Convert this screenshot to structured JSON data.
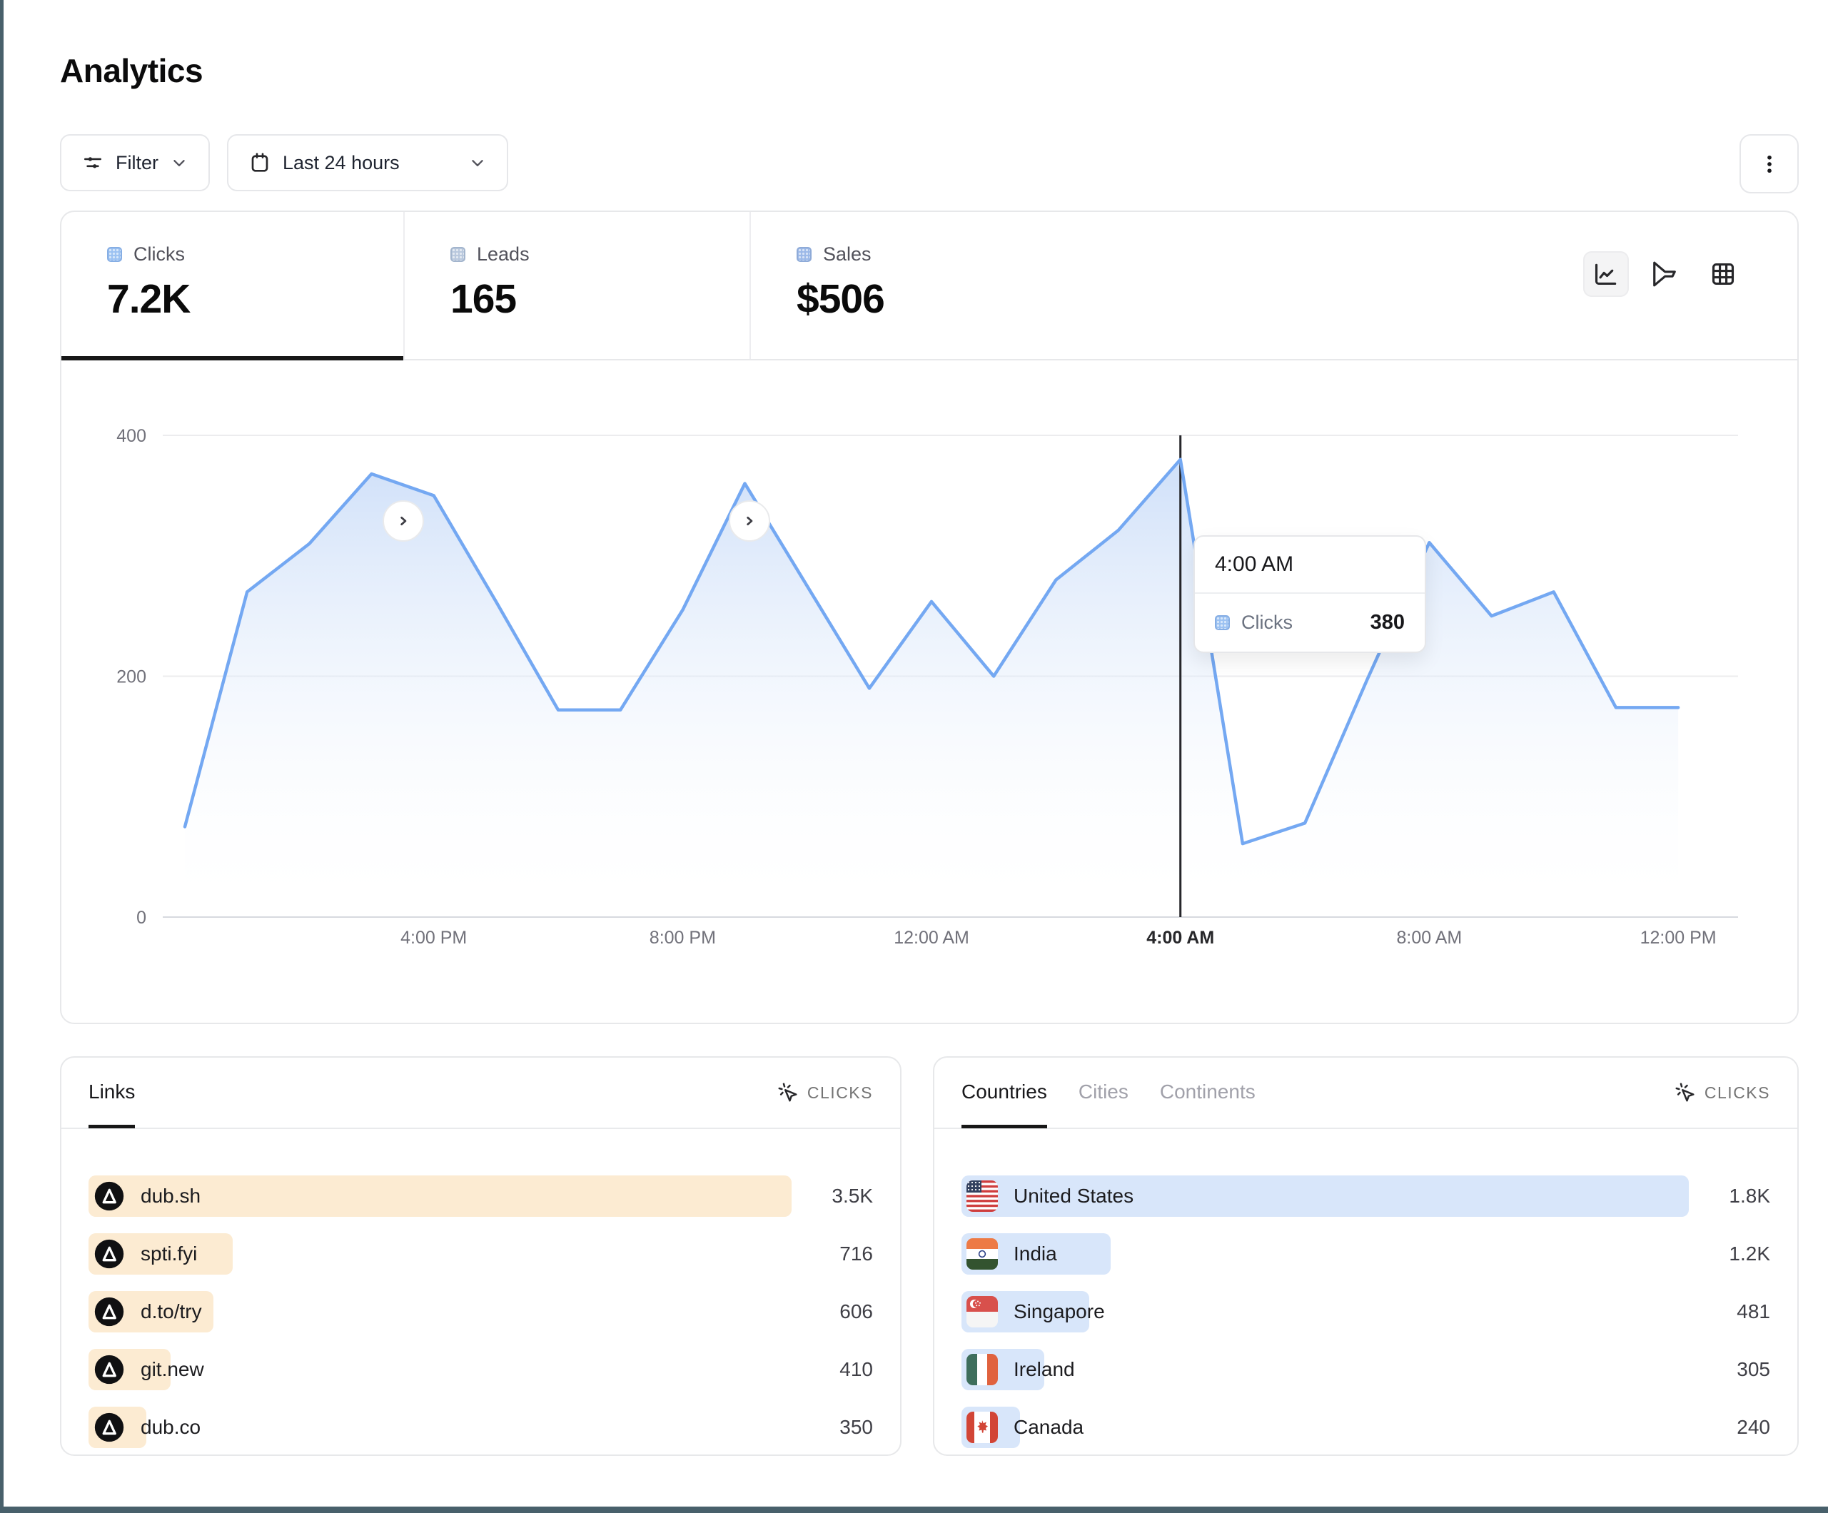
{
  "colors": {
    "window_edge": "#48606b",
    "accent_blue": "#74a8f2",
    "legend_clicks": "#9cc2f2",
    "legend_leads": "#b9c8dd",
    "legend_sales": "#9cb9e8",
    "bar_peach": "#fcebd2",
    "bar_blue": "#d8e6fa",
    "area_fill_top": "#c3d8f7"
  },
  "page": {
    "title": "Analytics"
  },
  "toolbar": {
    "filter_label": "Filter",
    "date_range_label": "Last 24 hours"
  },
  "stats": [
    {
      "label": "Clicks",
      "value": "7.2K"
    },
    {
      "label": "Leads",
      "value": "165"
    },
    {
      "label": "Sales",
      "value": "$506"
    }
  ],
  "chart_controls": [
    "line-chart",
    "funnel-chart",
    "table-view"
  ],
  "chart_data": {
    "type": "area",
    "series_name": "Clicks",
    "x": [
      "12:00 PM",
      "1:00 PM",
      "2:00 PM",
      "3:00 PM",
      "4:00 PM",
      "5:00 PM",
      "6:00 PM",
      "7:00 PM",
      "8:00 PM",
      "9:00 PM",
      "10:00 PM",
      "11:00 PM",
      "12:00 AM",
      "1:00 AM",
      "2:00 AM",
      "3:00 AM",
      "4:00 AM",
      "5:00 AM",
      "6:00 AM",
      "7:00 AM",
      "8:00 AM",
      "9:00 AM",
      "10:00 AM",
      "11:00 AM",
      "12:00 PM"
    ],
    "values": [
      75,
      270,
      310,
      368,
      350,
      262,
      172,
      172,
      255,
      360,
      275,
      190,
      262,
      200,
      280,
      321,
      380,
      61,
      78,
      197,
      311,
      250,
      270,
      174,
      174
    ],
    "ylim": [
      0,
      400
    ],
    "y_ticks": [
      0,
      200,
      400
    ],
    "x_ticks": [
      {
        "index": 4,
        "label": "4:00 PM"
      },
      {
        "index": 8,
        "label": "8:00 PM"
      },
      {
        "index": 12,
        "label": "12:00 AM"
      },
      {
        "index": 16,
        "label": "4:00 AM"
      },
      {
        "index": 20,
        "label": "8:00 AM"
      },
      {
        "index": 24,
        "label": "12:00 PM"
      }
    ],
    "grid": "horizontal",
    "legend_position": "none",
    "crosshair_index": 16,
    "tooltip": {
      "title": "4:00 AM",
      "series": "Clicks",
      "value": "380"
    }
  },
  "links_panel": {
    "tab_label": "Links",
    "metric_label": "CLICKS",
    "rows": [
      {
        "name": "dub.sh",
        "value": "3.5K",
        "bar_pct": 100,
        "icon": "dub-logo"
      },
      {
        "name": "spti.fyi",
        "value": "716",
        "bar_pct": 20.5,
        "icon": "dub-logo"
      },
      {
        "name": "d.to/try",
        "value": "606",
        "bar_pct": 17.8,
        "icon": "dub-logo"
      },
      {
        "name": "git.new",
        "value": "410",
        "bar_pct": 11.7,
        "icon": "dub-logo"
      },
      {
        "name": "dub.co",
        "value": "350",
        "bar_pct": 8.2,
        "icon": "dub-logo"
      }
    ]
  },
  "countries_panel": {
    "tabs": [
      "Countries",
      "Cities",
      "Continents"
    ],
    "active_tab": "Countries",
    "metric_label": "CLICKS",
    "rows": [
      {
        "name": "United States",
        "value": "1.8K",
        "bar_pct": 100,
        "icon": "flag-us"
      },
      {
        "name": "India",
        "value": "1.2K",
        "bar_pct": 20.5,
        "icon": "flag-in"
      },
      {
        "name": "Singapore",
        "value": "481",
        "bar_pct": 17.6,
        "icon": "flag-sg"
      },
      {
        "name": "Ireland",
        "value": "305",
        "bar_pct": 11.4,
        "icon": "flag-ie"
      },
      {
        "name": "Canada",
        "value": "240",
        "bar_pct": 8.0,
        "icon": "flag-ca"
      }
    ]
  }
}
